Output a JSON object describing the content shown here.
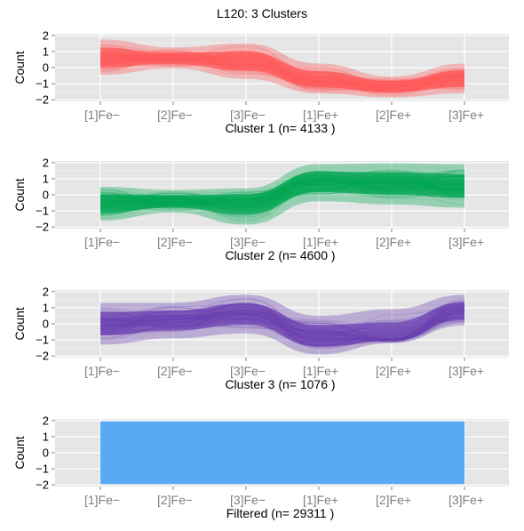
{
  "figure": {
    "title": "L120: 3 Clusters",
    "panel_background": "#e5e5e5",
    "grid_color": "#ffffff"
  },
  "chart_data": [
    {
      "type": "line",
      "caption": "Cluster 1 (n= 4133 )",
      "ylabel": "Count",
      "color": "#ff5a5a",
      "categories": [
        "[1]Fe−",
        "[2]Fe−",
        "[3]Fe−",
        "[1]Fe+",
        "[2]Fe+",
        "[3]Fe+"
      ],
      "yticks": [
        2,
        1,
        0,
        -1,
        -2
      ],
      "ylim": [
        -2.1,
        2.1
      ],
      "upper": [
        1.75,
        1.25,
        1.5,
        0.25,
        -0.55,
        0.25
      ],
      "lower": [
        -0.45,
        -0.05,
        -0.7,
        -1.6,
        -1.85,
        -1.6
      ],
      "center": [
        0.6,
        0.55,
        0.4,
        -0.8,
        -1.2,
        -0.7
      ]
    },
    {
      "type": "line",
      "caption": "Cluster 2 (n= 4600 )",
      "ylabel": "Count",
      "color": "#00a651",
      "categories": [
        "[1]Fe−",
        "[2]Fe−",
        "[3]Fe−",
        "[1]Fe+",
        "[2]Fe+",
        "[3]Fe+"
      ],
      "yticks": [
        2,
        1,
        0,
        -1,
        -2
      ],
      "ylim": [
        -2.1,
        2.1
      ],
      "upper": [
        0.5,
        0.3,
        0.4,
        1.9,
        1.95,
        1.9
      ],
      "lower": [
        -1.6,
        -1.1,
        -1.85,
        -0.4,
        -0.6,
        -0.8
      ],
      "center": [
        -0.55,
        -0.4,
        -0.45,
        0.85,
        0.75,
        0.55
      ]
    },
    {
      "type": "line",
      "caption": "Cluster 3 (n= 1076 )",
      "ylabel": "Count",
      "color": "#6a3fb0",
      "categories": [
        "[1]Fe−",
        "[2]Fe−",
        "[3]Fe−",
        "[1]Fe+",
        "[2]Fe+",
        "[3]Fe+"
      ],
      "yticks": [
        2,
        1,
        0,
        -1,
        -2
      ],
      "ylim": [
        -2.1,
        2.1
      ],
      "upper": [
        1.3,
        1.3,
        1.8,
        0.5,
        0.9,
        1.8
      ],
      "lower": [
        -1.3,
        -0.9,
        -0.6,
        -1.9,
        -1.2,
        -0.1
      ],
      "center": [
        0.0,
        0.2,
        0.6,
        -0.8,
        -0.9,
        0.8
      ]
    },
    {
      "type": "line",
      "caption": "Filtered (n= 29311 )",
      "ylabel": "Count",
      "color": "#5aa9f5",
      "categories": [
        "[1]Fe−",
        "[2]Fe−",
        "[3]Fe−",
        "[1]Fe+",
        "[2]Fe+",
        "[3]Fe+"
      ],
      "yticks": [
        2,
        1,
        0,
        -1,
        -2
      ],
      "ylim": [
        -2.1,
        2.1
      ],
      "upper": [
        1.95,
        1.95,
        1.95,
        1.95,
        1.95,
        1.95
      ],
      "lower": [
        -1.95,
        -1.95,
        -1.95,
        -1.95,
        -1.95,
        -1.95
      ],
      "center": [
        0,
        0,
        0,
        0,
        0,
        0
      ]
    }
  ]
}
